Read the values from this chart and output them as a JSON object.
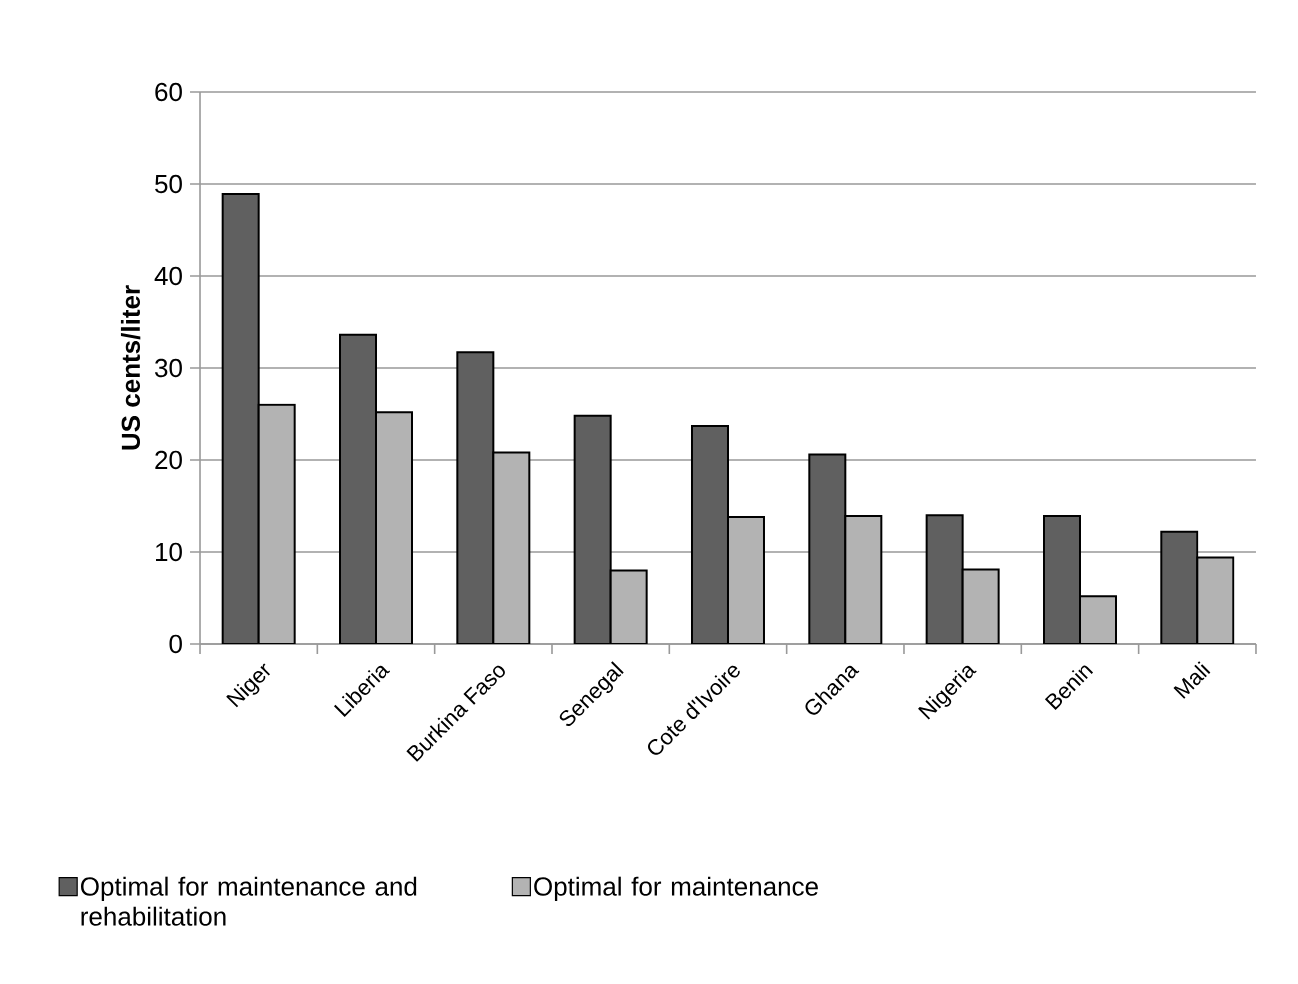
{
  "chart_data": {
    "type": "bar",
    "ylabel": "US cents/liter",
    "categories": [
      "Niger",
      "Liberia",
      "Burkina Faso",
      "Senegal",
      "Cote d'Ivoire",
      "Ghana",
      "Nigeria",
      "Benin",
      "Mali"
    ],
    "series": [
      {
        "name": "Optimal for maintenance and rehabilitation",
        "color": "#606060",
        "values": [
          48.9,
          33.6,
          31.7,
          24.8,
          23.7,
          20.6,
          14.0,
          13.9,
          12.2
        ]
      },
      {
        "name": "Optimal for maintenance",
        "color": "#b3b3b3",
        "values": [
          26.0,
          25.2,
          20.8,
          8.0,
          13.8,
          13.9,
          8.1,
          5.2,
          9.4
        ]
      }
    ],
    "ylim": [
      0,
      60
    ],
    "yticks": [
      0,
      10,
      20,
      30,
      40,
      50,
      60
    ],
    "grid": "y",
    "legend": "bottom"
  }
}
